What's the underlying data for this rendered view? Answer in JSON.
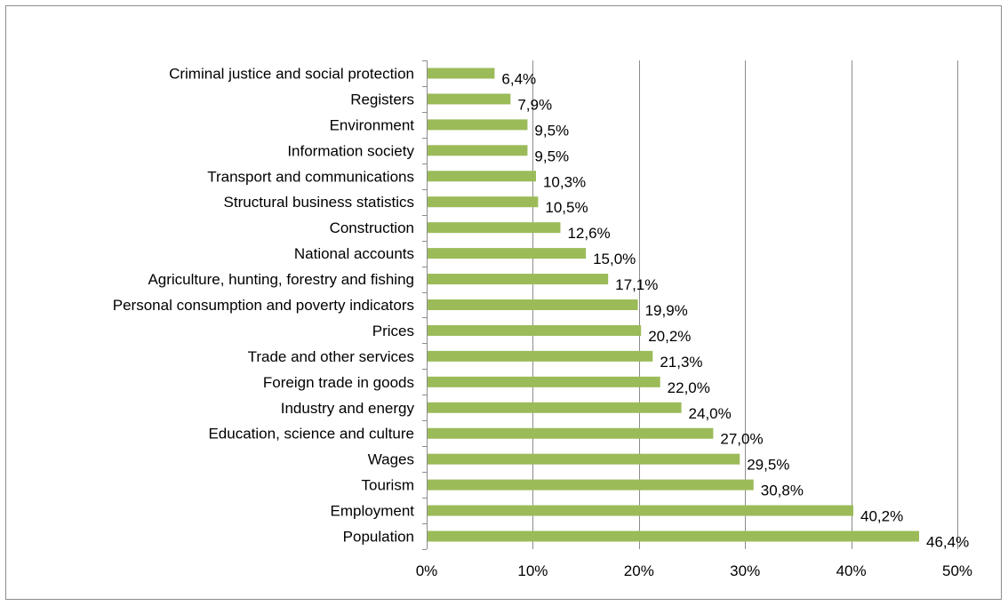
{
  "chart_data": {
    "type": "bar",
    "orientation": "horizontal",
    "title": "",
    "xlabel": "",
    "ylabel": "",
    "categories": [
      "Criminal justice and social protection",
      "Registers",
      "Environment",
      "Information society",
      "Transport and communications",
      "Structural business statistics",
      "Construction",
      "National accounts",
      "Agriculture, hunting, forestry and fishing",
      "Personal consumption and poverty indicators",
      "Prices",
      "Trade and other services",
      "Foreign trade in goods",
      "Industry and energy",
      "Education, science and culture",
      "Wages",
      "Tourism",
      "Employment",
      "Population"
    ],
    "values": [
      6.4,
      7.9,
      9.5,
      9.5,
      10.3,
      10.5,
      12.6,
      15.0,
      17.1,
      19.9,
      20.2,
      21.3,
      22.0,
      24.0,
      27.0,
      29.5,
      30.8,
      40.2,
      46.4
    ],
    "value_labels": [
      "6,4%",
      "7,9%",
      "9,5%",
      "9,5%",
      "10,3%",
      "10,5%",
      "12,6%",
      "15,0%",
      "17,1%",
      "19,9%",
      "20,2%",
      "21,3%",
      "22,0%",
      "24,0%",
      "27,0%",
      "29,5%",
      "30,8%",
      "40,2%",
      "46,4%"
    ],
    "xlim": [
      0,
      50
    ],
    "x_ticks": [
      0,
      10,
      20,
      30,
      40,
      50
    ],
    "x_tick_labels": [
      "0%",
      "10%",
      "20%",
      "30%",
      "40%",
      "50%"
    ],
    "grid": "vertical",
    "legend": "none",
    "bar_color": "#9bbb59",
    "grid_color": "#8c8c8c"
  }
}
